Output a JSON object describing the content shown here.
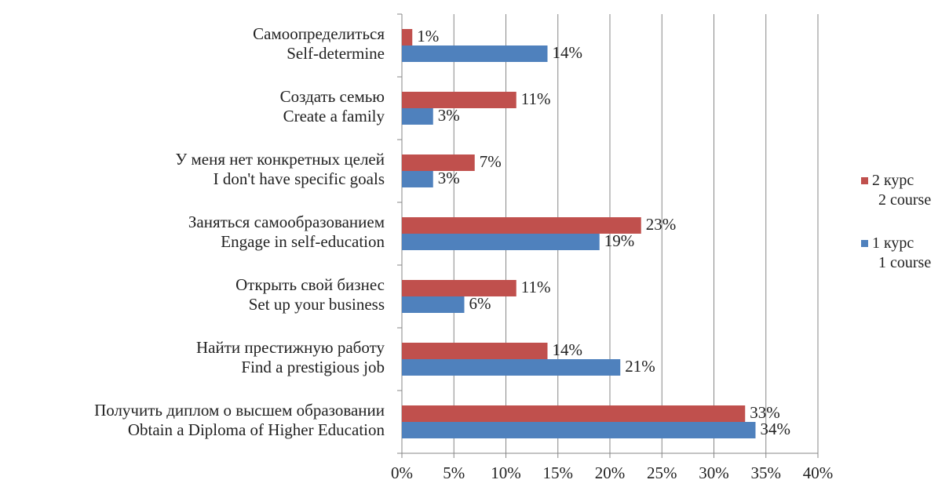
{
  "chart_data": {
    "type": "bar",
    "orientation": "horizontal",
    "categories": [
      [
        "Получить диплом о высшем образовании",
        "Obtain a Diploma of Higher Education"
      ],
      [
        "Найти престижную работу",
        "Find a prestigious job"
      ],
      [
        "Открыть свой бизнес",
        "Set up your business"
      ],
      [
        "Заняться самообразованием",
        "Engage in self-education"
      ],
      [
        "У меня нет конкретных целей",
        "I don't have specific goals"
      ],
      [
        "Создать семью",
        "Create a family"
      ],
      [
        "Самоопределиться",
        "Self-determine"
      ]
    ],
    "series": [
      {
        "name": [
          "2 курс",
          "2 course"
        ],
        "color": "#c0504d",
        "values": [
          33,
          14,
          11,
          23,
          7,
          11,
          1
        ],
        "labels": [
          "33%",
          "14%",
          "11%",
          "23%",
          "7%",
          "11%",
          "1%"
        ]
      },
      {
        "name": [
          "1 курс",
          "1 course"
        ],
        "color": "#4f81bd",
        "values": [
          34,
          21,
          6,
          19,
          3,
          3,
          14
        ],
        "labels": [
          "34%",
          "21%",
          "6%",
          "19%",
          "3%",
          "3%",
          "14%"
        ]
      }
    ],
    "xlim": [
      0,
      40
    ],
    "xticks": [
      "0%",
      "5%",
      "10%",
      "15%",
      "20%",
      "25%",
      "30%",
      "35%",
      "40%"
    ],
    "grid": "vertical",
    "legend_position": "right",
    "title": "",
    "xlabel": "",
    "ylabel": ""
  }
}
